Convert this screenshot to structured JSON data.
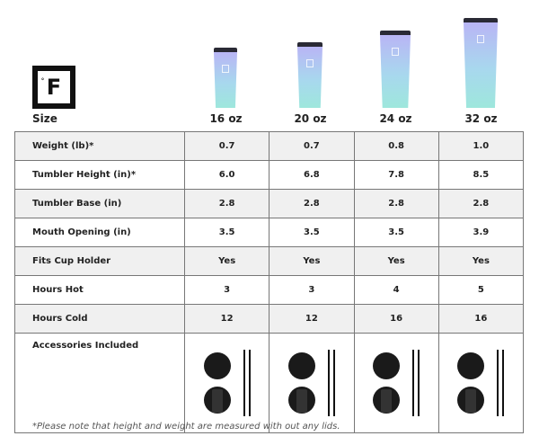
{
  "brand": {
    "logo_text": "F",
    "logo_degree": "°"
  },
  "header": {
    "size_label": "Size",
    "sizes": [
      "16 oz",
      "20 oz",
      "24 oz",
      "32 oz"
    ]
  },
  "rows": [
    {
      "label": "Weight (lb)*",
      "values": [
        "0.7",
        "0.7",
        "0.8",
        "1.0"
      ]
    },
    {
      "label": "Tumbler Height (in)*",
      "values": [
        "6.0",
        "6.8",
        "7.8",
        "8.5"
      ]
    },
    {
      "label": "Tumbler Base (in)",
      "values": [
        "2.8",
        "2.8",
        "2.8",
        "2.8"
      ]
    },
    {
      "label": "Mouth Opening (in)",
      "values": [
        "3.5",
        "3.5",
        "3.5",
        "3.9"
      ]
    },
    {
      "label": "Fits Cup Holder",
      "values": [
        "Yes",
        "Yes",
        "Yes",
        "Yes"
      ]
    },
    {
      "label": "Hours Hot",
      "values": [
        "3",
        "3",
        "4",
        "5"
      ]
    },
    {
      "label": "Hours Cold",
      "values": [
        "12",
        "12",
        "16",
        "16"
      ]
    }
  ],
  "accessories_label": "Accessories Included",
  "footnote": "*Please note that height and weight are measured with out any lids.",
  "colors": {
    "tumbler_top": "#b9b5f5",
    "tumbler_bottom": "#9ee7dc",
    "row_alt": "#f0f0f0"
  }
}
